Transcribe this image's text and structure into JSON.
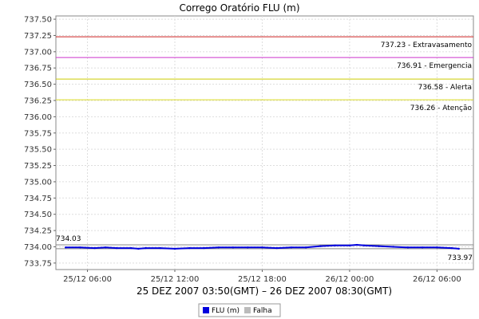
{
  "chart_data": {
    "type": "line",
    "title": "Corrego Oratório FLU (m)",
    "xlabel": "25 DEZ 2007 03:50(GMT) – 26 DEZ 2007 08:30(GMT)",
    "ylabel": "",
    "x_range": [
      "2007-12-25 03:50",
      "2007-12-26 08:30"
    ],
    "x_ticks": [
      {
        "time": "2007-12-25 06:00",
        "label": "25/12 06:00"
      },
      {
        "time": "2007-12-25 12:00",
        "label": "25/12 12:00"
      },
      {
        "time": "2007-12-25 18:00",
        "label": "25/12 18:00"
      },
      {
        "time": "2007-12-26 00:00",
        "label": "26/12 00:00"
      },
      {
        "time": "2007-12-26 06:00",
        "label": "26/12 06:00"
      }
    ],
    "ylim": [
      733.65,
      737.55
    ],
    "y_ticks": [
      "733.75",
      "734.00",
      "734.25",
      "734.50",
      "734.75",
      "735.00",
      "735.25",
      "735.50",
      "735.75",
      "736.00",
      "736.25",
      "736.50",
      "736.75",
      "737.00",
      "737.25",
      "737.50"
    ],
    "grid": true,
    "thresholds": [
      {
        "value": 737.23,
        "label": "737.23 - Extravasamento",
        "color": "#cc2222"
      },
      {
        "value": 736.91,
        "label": "736.91 - Emergencia",
        "color": "#cc33cc"
      },
      {
        "value": 736.58,
        "label": "736.58 - Alerta",
        "color": "#cccc00"
      },
      {
        "value": 736.26,
        "label": "736.26 - Atenção",
        "color": "#dddd22"
      }
    ],
    "max_label": "734.03",
    "min_label": "733.97",
    "max_value": 734.03,
    "min_value": 733.97,
    "series": [
      {
        "name": "FLU (m)",
        "color": "#0000dd",
        "points": [
          [
            "2007-12-25 04:30",
            733.99
          ],
          [
            "2007-12-25 05:30",
            733.99
          ],
          [
            "2007-12-25 06:30",
            733.98
          ],
          [
            "2007-12-25 07:15",
            733.99
          ],
          [
            "2007-12-25 08:00",
            733.98
          ],
          [
            "2007-12-25 09:00",
            733.98
          ],
          [
            "2007-12-25 09:30",
            733.97
          ],
          [
            "2007-12-25 10:00",
            733.98
          ],
          [
            "2007-12-25 11:00",
            733.98
          ],
          [
            "2007-12-25 12:00",
            733.97
          ],
          [
            "2007-12-25 13:00",
            733.98
          ],
          [
            "2007-12-25 14:00",
            733.98
          ],
          [
            "2007-12-25 15:00",
            733.99
          ],
          [
            "2007-12-25 16:00",
            733.99
          ],
          [
            "2007-12-25 17:00",
            733.99
          ],
          [
            "2007-12-25 18:00",
            733.99
          ],
          [
            "2007-12-25 19:00",
            733.98
          ],
          [
            "2007-12-25 20:00",
            733.99
          ],
          [
            "2007-12-25 21:00",
            733.99
          ],
          [
            "2007-12-25 22:00",
            734.01
          ],
          [
            "2007-12-25 23:00",
            734.02
          ],
          [
            "2007-12-26 00:00",
            734.02
          ],
          [
            "2007-12-26 00:30",
            734.03
          ],
          [
            "2007-12-26 01:00",
            734.02
          ],
          [
            "2007-12-26 02:00",
            734.01
          ],
          [
            "2007-12-26 03:00",
            734.0
          ],
          [
            "2007-12-26 04:00",
            733.99
          ],
          [
            "2007-12-26 05:00",
            733.99
          ],
          [
            "2007-12-26 06:00",
            733.99
          ],
          [
            "2007-12-26 07:00",
            733.98
          ],
          [
            "2007-12-26 07:30",
            733.97
          ]
        ]
      },
      {
        "name": "Falha",
        "color": "#bbbbbb",
        "points": []
      }
    ],
    "legend": {
      "placement": "bottom-center",
      "entries": [
        "FLU (m)",
        "Falha"
      ]
    }
  }
}
